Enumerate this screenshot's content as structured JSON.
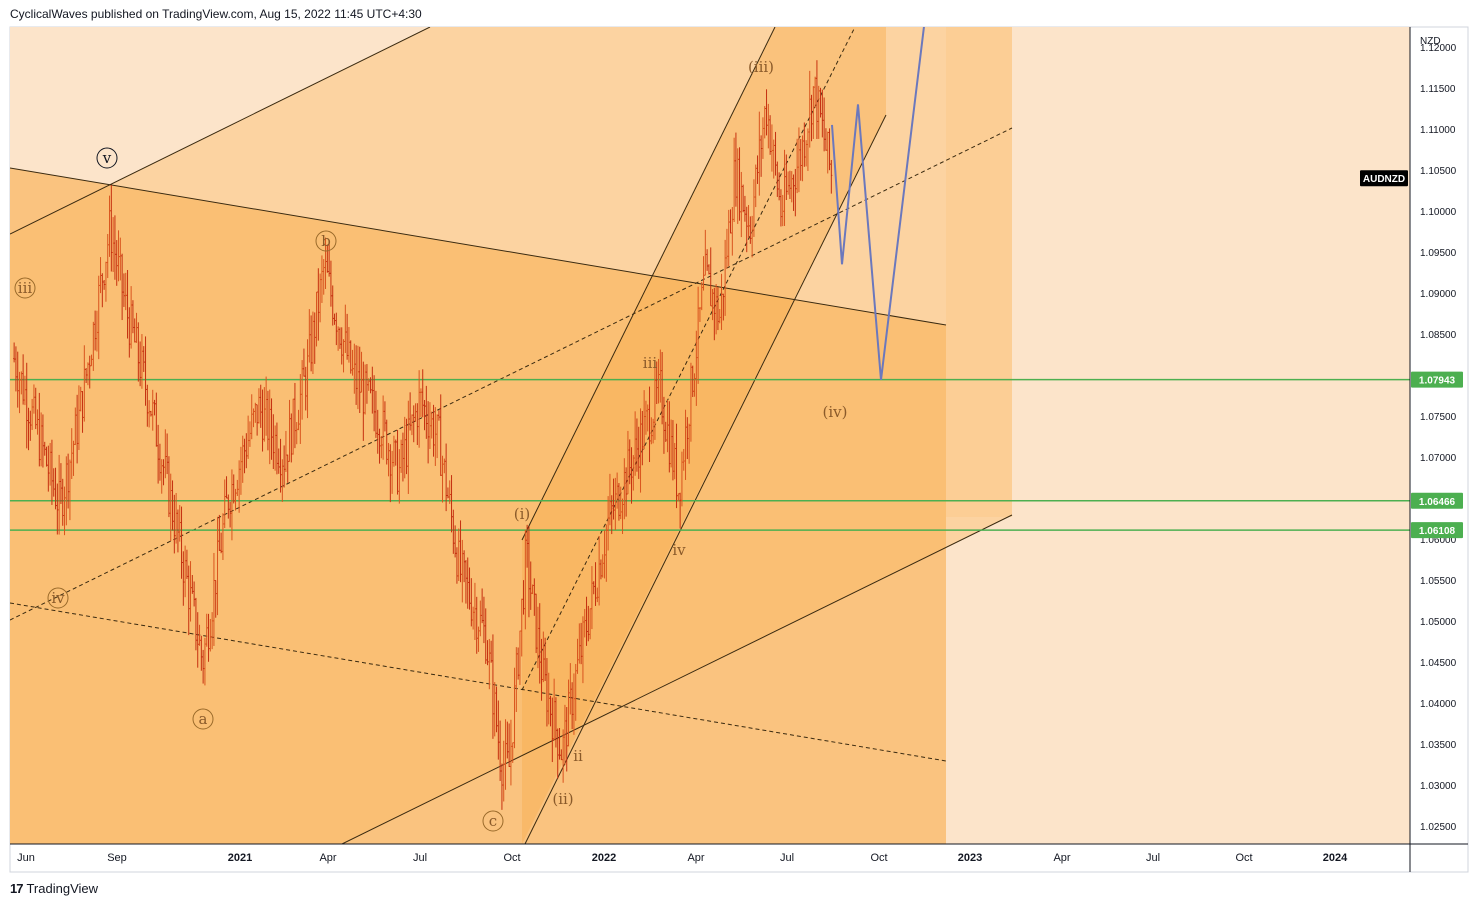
{
  "header": {
    "publish_text": "CyclicalWaves published on TradingView.com, Aug 15, 2022 11:45 UTC+4:30"
  },
  "footer": {
    "brand": "TradingView",
    "logo_text": "17"
  },
  "chart_data": {
    "type": "candlestick",
    "symbol": "AUDNZD",
    "currency": "NZD",
    "x_ticks": [
      "Jun",
      "Sep",
      "2021",
      "Apr",
      "Jul",
      "Oct",
      "2022",
      "Apr",
      "Jul",
      "Oct",
      "2023",
      "Apr",
      "Jul",
      "Oct",
      "2024"
    ],
    "y_ticks": [
      "1.02500",
      "1.03000",
      "1.03500",
      "1.04000",
      "1.04500",
      "1.05000",
      "1.05500",
      "1.06000",
      "1.06500",
      "1.07000",
      "1.07500",
      "1.08000",
      "1.08500",
      "1.09000",
      "1.09500",
      "1.10000",
      "1.10500",
      "1.11000",
      "1.11500",
      "1.12000"
    ],
    "ylim": [
      1.0215,
      1.1225
    ],
    "price_levels": [
      {
        "label": "1.07943",
        "value": 1.07943,
        "color": "#4caf50"
      },
      {
        "label": "1.06466",
        "value": 1.06466,
        "color": "#4caf50"
      },
      {
        "label": "1.06108",
        "value": 1.06108,
        "color": "#4caf50"
      }
    ],
    "last_price_badge": {
      "label": "AUDNZD",
      "color": "#000000"
    },
    "wave_labels": [
      {
        "text": "v",
        "circled": true
      },
      {
        "text": "iii",
        "circled": true
      },
      {
        "text": "b",
        "circled": true
      },
      {
        "text": "iv",
        "circled": true
      },
      {
        "text": "a",
        "circled": true
      },
      {
        "text": "c",
        "circled": true
      },
      {
        "text": "(i)",
        "circled": false
      },
      {
        "text": "(ii)",
        "circled": false
      },
      {
        "text": "(iii)",
        "circled": false
      },
      {
        "text": "(iv)",
        "circled": false
      },
      {
        "text": "iii",
        "circled": false
      },
      {
        "text": "iv",
        "circled": false
      },
      {
        "text": "ii",
        "circled": false
      }
    ],
    "price_path": [
      {
        "date": "2020-05-20",
        "close": 1.082
      },
      {
        "date": "2020-06-10",
        "close": 1.074
      },
      {
        "date": "2020-07-05",
        "close": 1.064
      },
      {
        "date": "2020-07-25",
        "close": 1.075
      },
      {
        "date": "2020-08-25",
        "close": 1.098
      },
      {
        "date": "2020-09-10",
        "close": 1.088
      },
      {
        "date": "2020-10-05",
        "close": 1.076
      },
      {
        "date": "2020-11-01",
        "close": 1.06
      },
      {
        "date": "2020-11-25",
        "close": 1.045
      },
      {
        "date": "2020-12-20",
        "close": 1.065
      },
      {
        "date": "2021-01-20",
        "close": 1.076
      },
      {
        "date": "2021-02-15",
        "close": 1.07
      },
      {
        "date": "2021-03-10",
        "close": 1.08
      },
      {
        "date": "2021-03-28",
        "close": 1.093
      },
      {
        "date": "2021-04-25",
        "close": 1.08
      },
      {
        "date": "2021-05-20",
        "close": 1.075
      },
      {
        "date": "2021-06-10",
        "close": 1.068
      },
      {
        "date": "2021-07-01",
        "close": 1.077
      },
      {
        "date": "2021-07-20",
        "close": 1.072
      },
      {
        "date": "2021-08-10",
        "close": 1.056
      },
      {
        "date": "2021-09-05",
        "close": 1.048
      },
      {
        "date": "2021-09-20",
        "close": 1.033
      },
      {
        "date": "2021-09-28",
        "close": 1.032
      },
      {
        "date": "2021-10-15",
        "close": 1.058
      },
      {
        "date": "2021-11-01",
        "close": 1.043
      },
      {
        "date": "2021-11-20",
        "close": 1.034
      },
      {
        "date": "2021-12-05",
        "close": 1.044
      },
      {
        "date": "2022-01-05",
        "close": 1.062
      },
      {
        "date": "2022-02-05",
        "close": 1.072
      },
      {
        "date": "2022-02-25",
        "close": 1.078
      },
      {
        "date": "2022-03-15",
        "close": 1.066
      },
      {
        "date": "2022-04-10",
        "close": 1.092
      },
      {
        "date": "2022-04-25",
        "close": 1.087
      },
      {
        "date": "2022-05-10",
        "close": 1.105
      },
      {
        "date": "2022-05-25",
        "close": 1.098
      },
      {
        "date": "2022-06-10",
        "close": 1.113
      },
      {
        "date": "2022-06-25",
        "close": 1.1
      },
      {
        "date": "2022-07-15",
        "close": 1.107
      },
      {
        "date": "2022-07-28",
        "close": 1.115
      },
      {
        "date": "2022-08-15",
        "close": 1.104
      }
    ],
    "projection": [
      {
        "date": "2022-08-15",
        "value": 1.1105
      },
      {
        "date": "2022-08-25",
        "value": 1.0935
      },
      {
        "date": "2022-09-10",
        "value": 1.113
      },
      {
        "date": "2022-10-03",
        "value": 1.0794
      },
      {
        "date": "2022-11-18",
        "value": 1.125
      }
    ],
    "colors": {
      "panel_bg": "#fce4ca",
      "bar_up": "#d9541e",
      "bar_down": "#c53010",
      "projection": "#6b78bd"
    }
  }
}
